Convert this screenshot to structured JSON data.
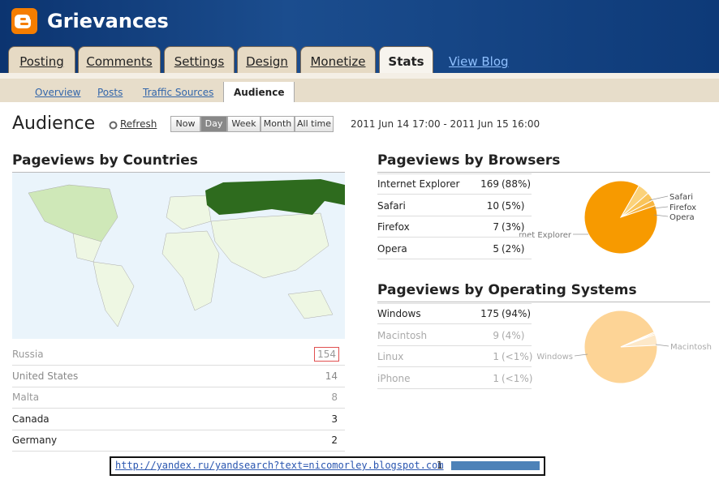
{
  "header": {
    "title": "Grievances"
  },
  "tabs": [
    "Posting",
    "Comments",
    "Settings",
    "Design",
    "Monetize",
    "Stats"
  ],
  "view_blog": "View Blog",
  "subtabs": [
    "Overview",
    "Posts",
    "Traffic Sources",
    "Audience"
  ],
  "page": {
    "title": "Audience",
    "refresh": "Refresh",
    "ranges": [
      "Now",
      "Day",
      "Week",
      "Month",
      "All time"
    ],
    "date_range": "2011 Jun 14 17:00 - 2011 Jun 15 16:00"
  },
  "countries": {
    "title": "Pageviews by Countries",
    "rows": [
      {
        "name": "Russia",
        "views": 154
      },
      {
        "name": "United States",
        "views": 14
      },
      {
        "name": "Malta",
        "views": 8
      },
      {
        "name": "Canada",
        "views": 3
      },
      {
        "name": "Germany",
        "views": 2
      }
    ]
  },
  "browsers": {
    "title": "Pageviews by Browsers",
    "rows": [
      {
        "name": "Internet Explorer",
        "views": 169,
        "share": "(88%)"
      },
      {
        "name": "Safari",
        "views": 10,
        "share": "(5%)"
      },
      {
        "name": "Firefox",
        "views": 7,
        "share": "(3%)"
      },
      {
        "name": "Opera",
        "views": 5,
        "share": "(2%)"
      }
    ]
  },
  "os": {
    "title": "Pageviews by Operating Systems",
    "rows": [
      {
        "name": "Windows",
        "views": 175,
        "share": "(94%)"
      },
      {
        "name": "Macintosh",
        "views": 9,
        "share": "(4%)"
      },
      {
        "name": "Linux",
        "views": 1,
        "share": "(<1%)"
      },
      {
        "name": "iPhone",
        "views": 1,
        "share": "(<1%)"
      }
    ]
  },
  "referrer": {
    "url": "http://yandex.ru/yandsearch?text=nicomorley.blogspot.com",
    "count": 1
  }
}
